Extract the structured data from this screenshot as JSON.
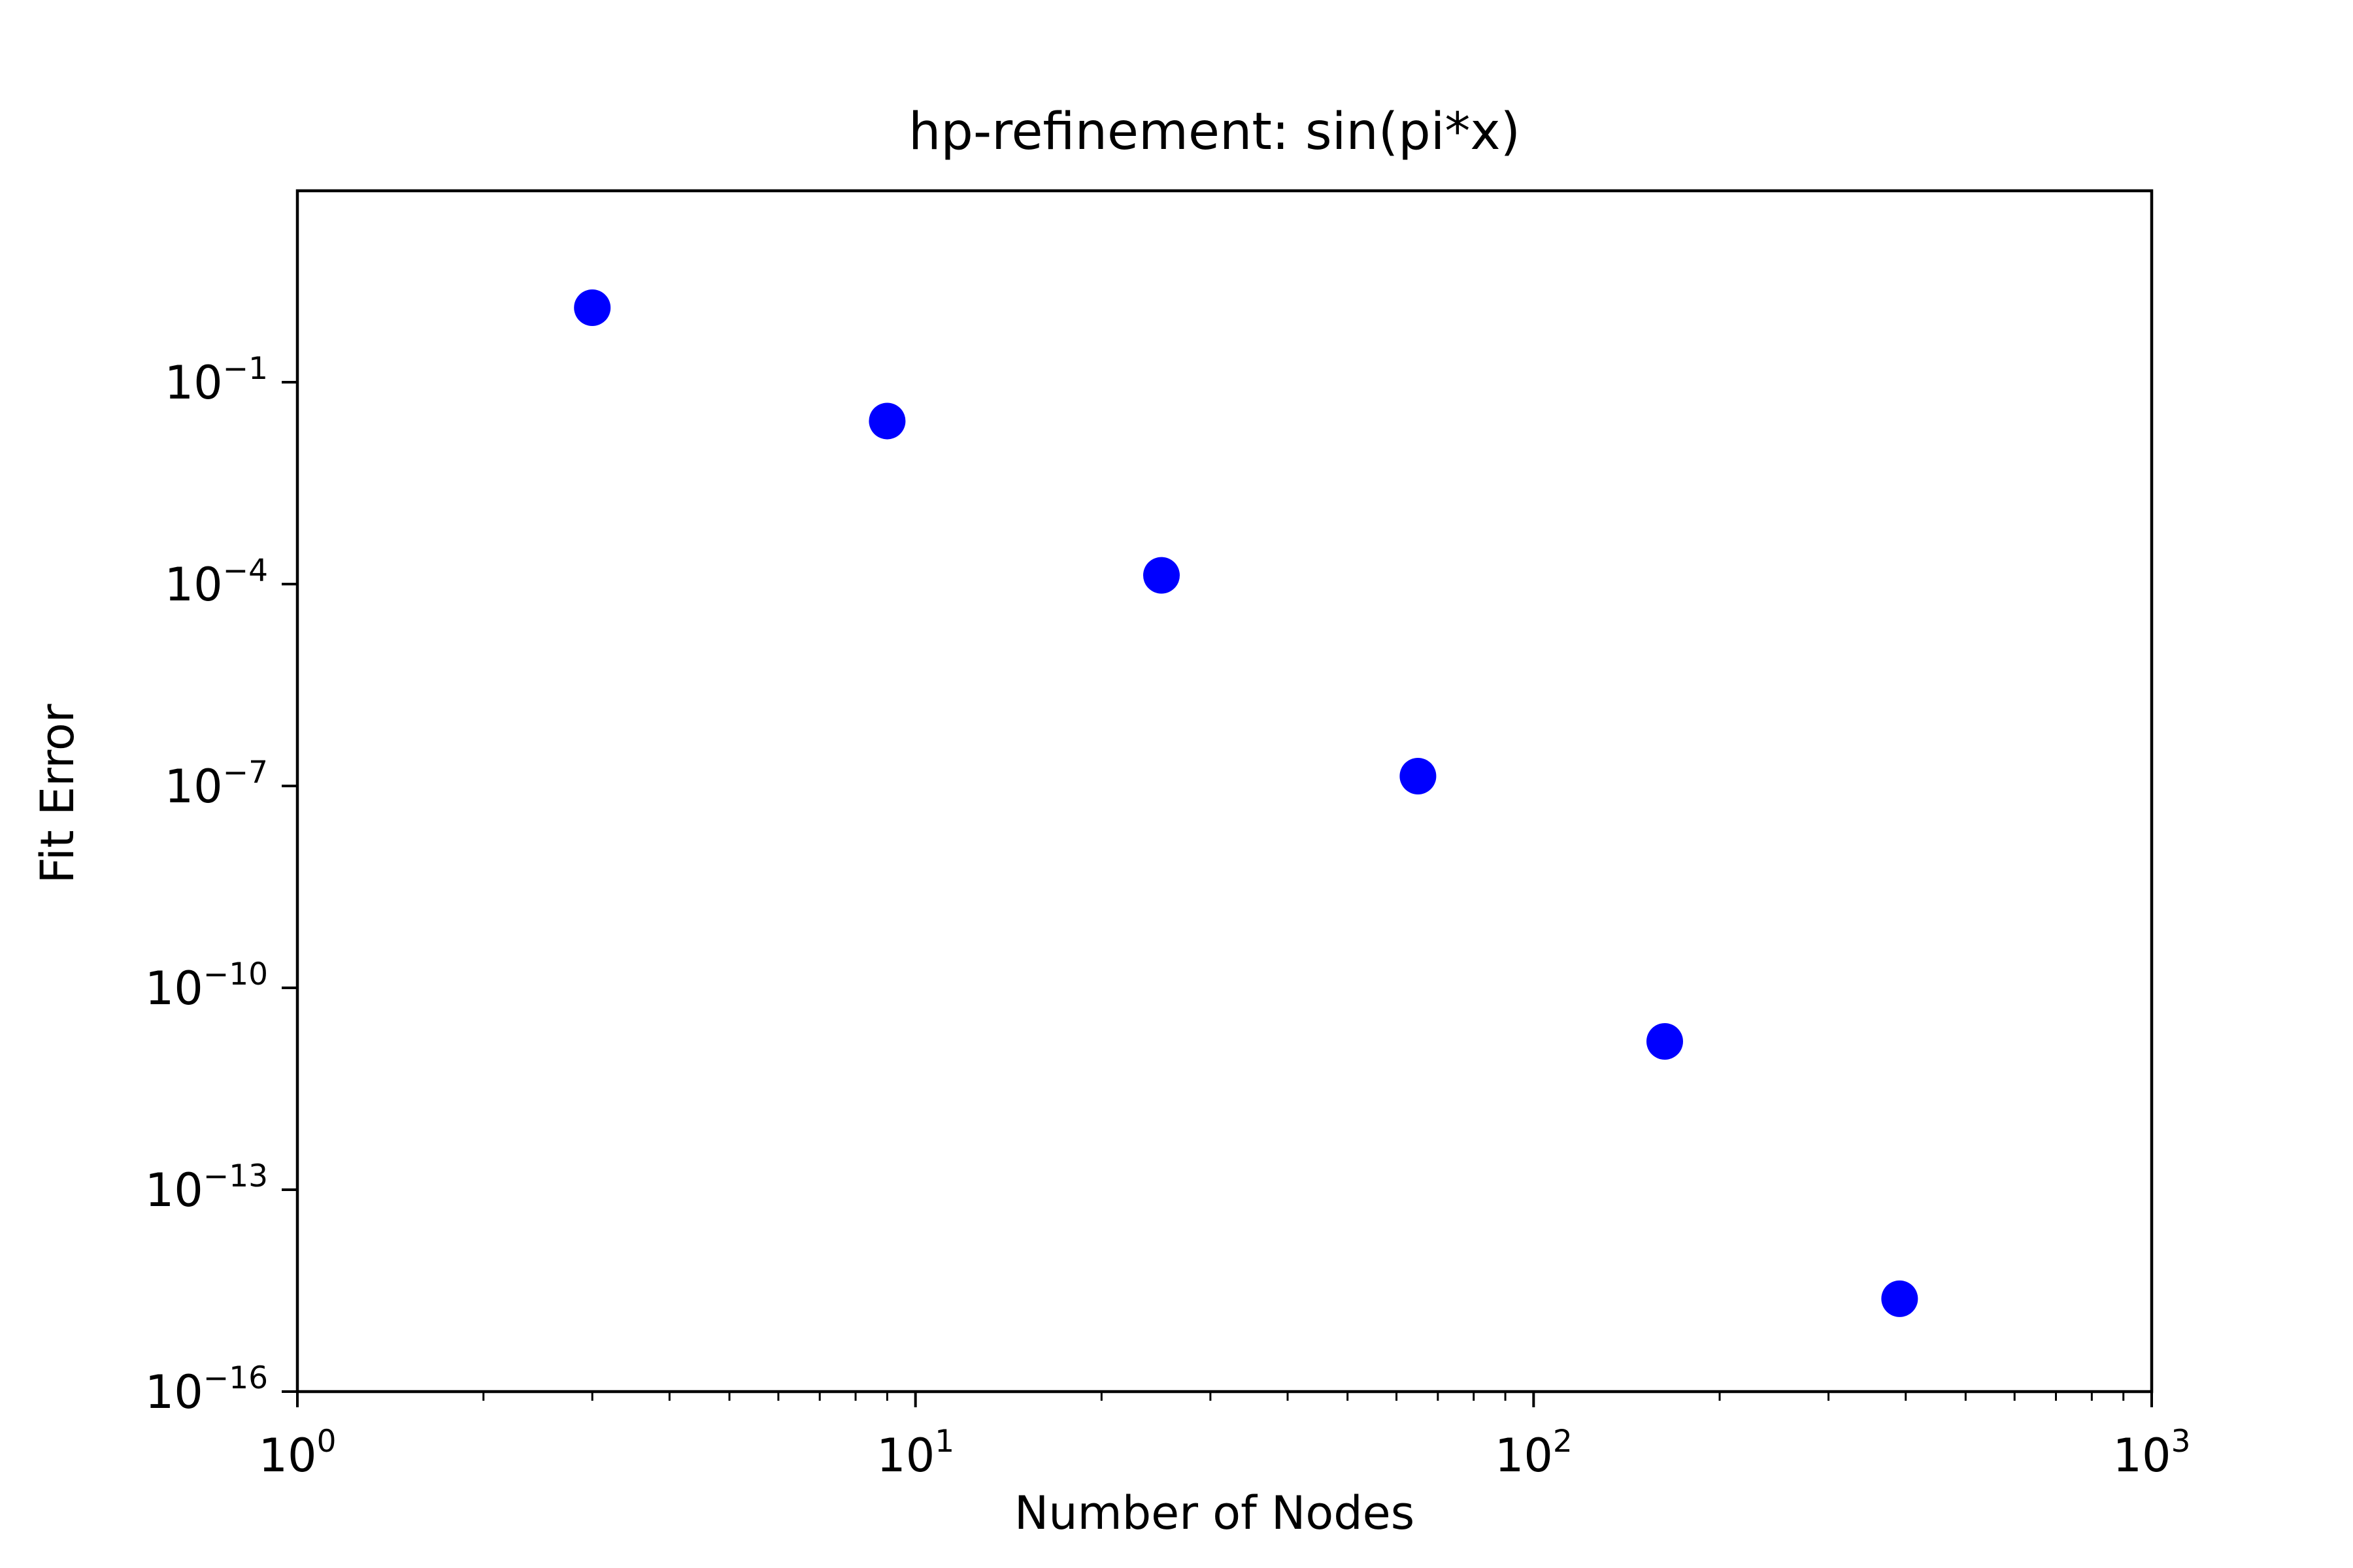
{
  "chart_data": {
    "type": "scatter",
    "title": "hp-refinement: sin(pi*x)",
    "xlabel": "Number of Nodes",
    "ylabel": "Fit Error",
    "xscale": "log",
    "yscale": "log",
    "xlim": [
      1,
      1000
    ],
    "ylim": [
      1e-16,
      70
    ],
    "xticks": [
      {
        "value": 1,
        "base": "10",
        "exp": "0"
      },
      {
        "value": 10,
        "base": "10",
        "exp": "1"
      },
      {
        "value": 100,
        "base": "10",
        "exp": "2"
      },
      {
        "value": 1000,
        "base": "10",
        "exp": "3"
      }
    ],
    "yticks": [
      {
        "value": 1e-16,
        "base": "10",
        "exp": "−16"
      },
      {
        "value": 1e-13,
        "base": "10",
        "exp": "−13"
      },
      {
        "value": 1e-10,
        "base": "10",
        "exp": "−10"
      },
      {
        "value": 1e-07,
        "base": "10",
        "exp": "−7"
      },
      {
        "value": 0.0001,
        "base": "10",
        "exp": "−4"
      },
      {
        "value": 0.1,
        "base": "10",
        "exp": "−1"
      }
    ],
    "grid": false,
    "series": [
      {
        "color": "#0000ff",
        "points": [
          {
            "x": 3,
            "y": 1.28
          },
          {
            "x": 9,
            "y": 0.0265
          },
          {
            "x": 25,
            "y": 0.000135
          },
          {
            "x": 65,
            "y": 1.4e-07
          },
          {
            "x": 163,
            "y": 1.6e-11
          },
          {
            "x": 391,
            "y": 2.4e-15
          }
        ]
      }
    ]
  }
}
